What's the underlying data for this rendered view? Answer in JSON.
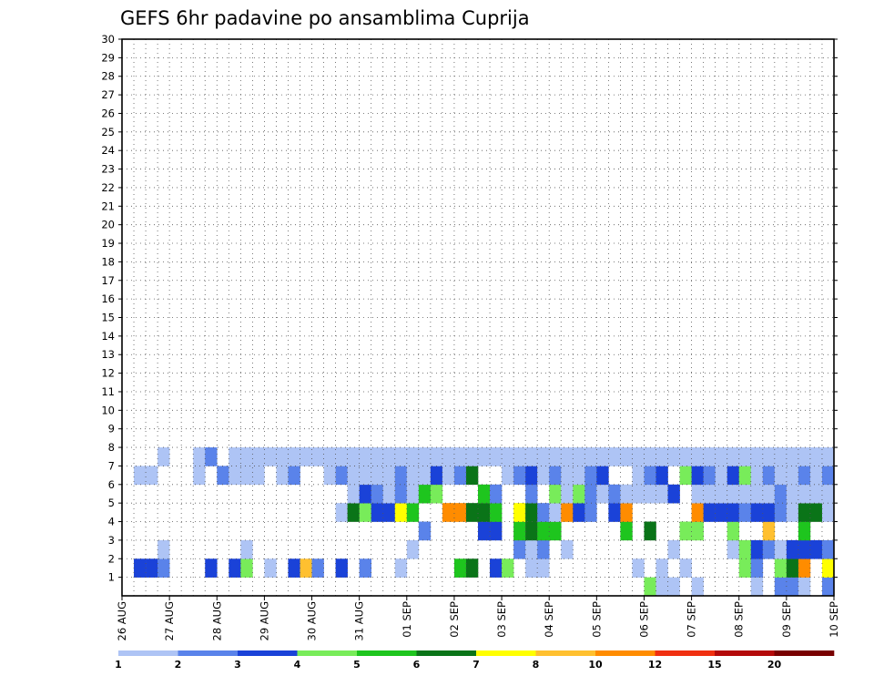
{
  "chart_data": {
    "type": "heatmap",
    "title": "GEFS 6hr padavine po ansamblima Cuprija",
    "xlabel": "",
    "ylabel": "",
    "x_tick_labels": [
      "26 AUG",
      "27 AUG",
      "28 AUG",
      "29 AUG",
      "30 AUG",
      "31 AUG",
      "01 SEP",
      "02 SEP",
      "03 SEP",
      "04 SEP",
      "05 SEP",
      "06 SEP",
      "07 SEP",
      "08 SEP",
      "09 SEP",
      "10 SEP"
    ],
    "x_range_steps": [
      0,
      60
    ],
    "steps_per_day": 4,
    "y_tick_labels": [
      "1",
      "2",
      "3",
      "4",
      "5",
      "6",
      "7",
      "8",
      "9",
      "10",
      "11",
      "12",
      "13",
      "14",
      "15",
      "16",
      "17",
      "18",
      "19",
      "20",
      "21",
      "22",
      "23",
      "24",
      "25",
      "26",
      "27",
      "28",
      "29",
      "30"
    ],
    "y_range_members": [
      0,
      30
    ],
    "grid": true,
    "colorbar": {
      "levels": [
        1,
        2,
        3,
        4,
        5,
        6,
        7,
        8,
        10,
        12,
        15,
        20
      ],
      "colors": [
        "#aec4f5",
        "#5a83ea",
        "#1a42d8",
        "#78ec5a",
        "#1ec51e",
        "#0a7418",
        "#ffff00",
        "#ffc030",
        "#ff8c00",
        "#f03010",
        "#b40a0a",
        "#780000"
      ]
    },
    "cells": [
      [
        44,
        0,
        3
      ],
      [
        45,
        0,
        0
      ],
      [
        46,
        0,
        0
      ],
      [
        48,
        0,
        0
      ],
      [
        53,
        0,
        0
      ],
      [
        55,
        0,
        1
      ],
      [
        56,
        0,
        1
      ],
      [
        57,
        0,
        0
      ],
      [
        59,
        0,
        1
      ],
      [
        1,
        1,
        2
      ],
      [
        2,
        1,
        2
      ],
      [
        3,
        1,
        1
      ],
      [
        7,
        1,
        2
      ],
      [
        9,
        1,
        2
      ],
      [
        10,
        1,
        3
      ],
      [
        12,
        1,
        0
      ],
      [
        14,
        1,
        2
      ],
      [
        15,
        1,
        7
      ],
      [
        16,
        1,
        1
      ],
      [
        18,
        1,
        2
      ],
      [
        20,
        1,
        1
      ],
      [
        23,
        1,
        0
      ],
      [
        28,
        1,
        4
      ],
      [
        29,
        1,
        5
      ],
      [
        31,
        1,
        2
      ],
      [
        32,
        1,
        3
      ],
      [
        34,
        1,
        0
      ],
      [
        35,
        1,
        0
      ],
      [
        43,
        1,
        0
      ],
      [
        45,
        1,
        0
      ],
      [
        47,
        1,
        0
      ],
      [
        52,
        1,
        3
      ],
      [
        53,
        1,
        1
      ],
      [
        55,
        1,
        3
      ],
      [
        56,
        1,
        5
      ],
      [
        57,
        1,
        8
      ],
      [
        59,
        1,
        6
      ],
      [
        3,
        2,
        0
      ],
      [
        10,
        2,
        0
      ],
      [
        24,
        2,
        0
      ],
      [
        33,
        2,
        1
      ],
      [
        34,
        2,
        0
      ],
      [
        35,
        2,
        1
      ],
      [
        37,
        2,
        0
      ],
      [
        46,
        2,
        0
      ],
      [
        51,
        2,
        0
      ],
      [
        52,
        2,
        3
      ],
      [
        53,
        2,
        2
      ],
      [
        54,
        2,
        1
      ],
      [
        55,
        2,
        0
      ],
      [
        56,
        2,
        2
      ],
      [
        57,
        2,
        2
      ],
      [
        58,
        2,
        2
      ],
      [
        59,
        2,
        1
      ],
      [
        25,
        3,
        1
      ],
      [
        30,
        3,
        2
      ],
      [
        31,
        3,
        2
      ],
      [
        33,
        3,
        4
      ],
      [
        34,
        3,
        5
      ],
      [
        35,
        3,
        4
      ],
      [
        36,
        3,
        4
      ],
      [
        42,
        3,
        4
      ],
      [
        44,
        3,
        5
      ],
      [
        47,
        3,
        3
      ],
      [
        48,
        3,
        3
      ],
      [
        51,
        3,
        3
      ],
      [
        54,
        3,
        7
      ],
      [
        57,
        3,
        4
      ],
      [
        18,
        4,
        0
      ],
      [
        19,
        4,
        5
      ],
      [
        20,
        4,
        3
      ],
      [
        21,
        4,
        2
      ],
      [
        22,
        4,
        2
      ],
      [
        23,
        4,
        6
      ],
      [
        24,
        4,
        4
      ],
      [
        27,
        4,
        8
      ],
      [
        28,
        4,
        8
      ],
      [
        29,
        4,
        5
      ],
      [
        30,
        4,
        5
      ],
      [
        31,
        4,
        4
      ],
      [
        33,
        4,
        6
      ],
      [
        34,
        4,
        5
      ],
      [
        35,
        4,
        1
      ],
      [
        36,
        4,
        0
      ],
      [
        37,
        4,
        8
      ],
      [
        38,
        4,
        2
      ],
      [
        39,
        4,
        1
      ],
      [
        41,
        4,
        2
      ],
      [
        42,
        4,
        8
      ],
      [
        48,
        4,
        8
      ],
      [
        49,
        4,
        2
      ],
      [
        50,
        4,
        2
      ],
      [
        51,
        4,
        2
      ],
      [
        52,
        4,
        1
      ],
      [
        53,
        4,
        2
      ],
      [
        54,
        4,
        2
      ],
      [
        55,
        4,
        1
      ],
      [
        56,
        4,
        0
      ],
      [
        57,
        4,
        5
      ],
      [
        58,
        4,
        5
      ],
      [
        59,
        4,
        0
      ],
      [
        19,
        5,
        0
      ],
      [
        20,
        5,
        2
      ],
      [
        21,
        5,
        1
      ],
      [
        22,
        5,
        0
      ],
      [
        23,
        5,
        1
      ],
      [
        24,
        5,
        0
      ],
      [
        25,
        5,
        4
      ],
      [
        26,
        5,
        3
      ],
      [
        30,
        5,
        4
      ],
      [
        31,
        5,
        1
      ],
      [
        34,
        5,
        1
      ],
      [
        36,
        5,
        3
      ],
      [
        37,
        5,
        0
      ],
      [
        38,
        5,
        3
      ],
      [
        39,
        5,
        1
      ],
      [
        40,
        5,
        0
      ],
      [
        41,
        5,
        1
      ],
      [
        42,
        5,
        0
      ],
      [
        43,
        5,
        0
      ],
      [
        44,
        5,
        0
      ],
      [
        45,
        5,
        0
      ],
      [
        46,
        5,
        2
      ],
      [
        48,
        5,
        0
      ],
      [
        49,
        5,
        0
      ],
      [
        50,
        5,
        0
      ],
      [
        51,
        5,
        0
      ],
      [
        52,
        5,
        0
      ],
      [
        53,
        5,
        0
      ],
      [
        54,
        5,
        0
      ],
      [
        55,
        5,
        1
      ],
      [
        56,
        5,
        0
      ],
      [
        57,
        5,
        0
      ],
      [
        58,
        5,
        0
      ],
      [
        59,
        5,
        0
      ],
      [
        1,
        6,
        0
      ],
      [
        2,
        6,
        0
      ],
      [
        6,
        6,
        0
      ],
      [
        8,
        6,
        1
      ],
      [
        9,
        6,
        0
      ],
      [
        10,
        6,
        0
      ],
      [
        11,
        6,
        0
      ],
      [
        13,
        6,
        0
      ],
      [
        14,
        6,
        1
      ],
      [
        17,
        6,
        0
      ],
      [
        18,
        6,
        1
      ],
      [
        19,
        6,
        0
      ],
      [
        20,
        6,
        0
      ],
      [
        21,
        6,
        0
      ],
      [
        22,
        6,
        0
      ],
      [
        23,
        6,
        1
      ],
      [
        24,
        6,
        0
      ],
      [
        25,
        6,
        0
      ],
      [
        26,
        6,
        2
      ],
      [
        27,
        6,
        0
      ],
      [
        28,
        6,
        1
      ],
      [
        29,
        6,
        5
      ],
      [
        32,
        6,
        0
      ],
      [
        33,
        6,
        1
      ],
      [
        34,
        6,
        2
      ],
      [
        35,
        6,
        0
      ],
      [
        36,
        6,
        1
      ],
      [
        37,
        6,
        0
      ],
      [
        38,
        6,
        0
      ],
      [
        39,
        6,
        1
      ],
      [
        40,
        6,
        2
      ],
      [
        43,
        6,
        0
      ],
      [
        44,
        6,
        1
      ],
      [
        45,
        6,
        2
      ],
      [
        47,
        6,
        3
      ],
      [
        48,
        6,
        2
      ],
      [
        49,
        6,
        1
      ],
      [
        50,
        6,
        0
      ],
      [
        51,
        6,
        2
      ],
      [
        52,
        6,
        3
      ],
      [
        53,
        6,
        0
      ],
      [
        54,
        6,
        1
      ],
      [
        55,
        6,
        0
      ],
      [
        56,
        6,
        0
      ],
      [
        57,
        6,
        1
      ],
      [
        58,
        6,
        0
      ],
      [
        59,
        6,
        1
      ],
      [
        3,
        7,
        0
      ],
      [
        6,
        7,
        0
      ],
      [
        7,
        7,
        1
      ],
      [
        9,
        7,
        0
      ],
      [
        10,
        7,
        0
      ],
      [
        11,
        7,
        0
      ],
      [
        12,
        7,
        0
      ],
      [
        13,
        7,
        0
      ],
      [
        14,
        7,
        0
      ],
      [
        15,
        7,
        0
      ],
      [
        16,
        7,
        0
      ],
      [
        17,
        7,
        0
      ],
      [
        18,
        7,
        0
      ],
      [
        19,
        7,
        0
      ],
      [
        20,
        7,
        0
      ],
      [
        21,
        7,
        0
      ],
      [
        22,
        7,
        0
      ],
      [
        23,
        7,
        0
      ],
      [
        24,
        7,
        0
      ],
      [
        25,
        7,
        0
      ],
      [
        26,
        7,
        0
      ],
      [
        27,
        7,
        0
      ],
      [
        28,
        7,
        0
      ],
      [
        29,
        7,
        0
      ],
      [
        30,
        7,
        0
      ],
      [
        31,
        7,
        0
      ],
      [
        32,
        7,
        0
      ],
      [
        33,
        7,
        0
      ],
      [
        34,
        7,
        0
      ],
      [
        35,
        7,
        0
      ],
      [
        36,
        7,
        0
      ],
      [
        37,
        7,
        0
      ],
      [
        38,
        7,
        0
      ],
      [
        39,
        7,
        0
      ],
      [
        40,
        7,
        0
      ],
      [
        41,
        7,
        0
      ],
      [
        42,
        7,
        0
      ],
      [
        43,
        7,
        0
      ],
      [
        44,
        7,
        0
      ],
      [
        45,
        7,
        0
      ],
      [
        46,
        7,
        0
      ],
      [
        47,
        7,
        0
      ],
      [
        48,
        7,
        0
      ],
      [
        49,
        7,
        0
      ],
      [
        50,
        7,
        0
      ],
      [
        51,
        7,
        0
      ],
      [
        52,
        7,
        0
      ],
      [
        53,
        7,
        0
      ],
      [
        54,
        7,
        0
      ],
      [
        55,
        7,
        0
      ],
      [
        56,
        7,
        0
      ],
      [
        57,
        7,
        0
      ],
      [
        58,
        7,
        0
      ],
      [
        59,
        7,
        0
      ]
    ]
  },
  "ui": {
    "colorbar_tick_labels": [
      "1",
      "2",
      "3",
      "4",
      "5",
      "6",
      "7",
      "8",
      "10",
      "12",
      "15",
      "20"
    ]
  }
}
